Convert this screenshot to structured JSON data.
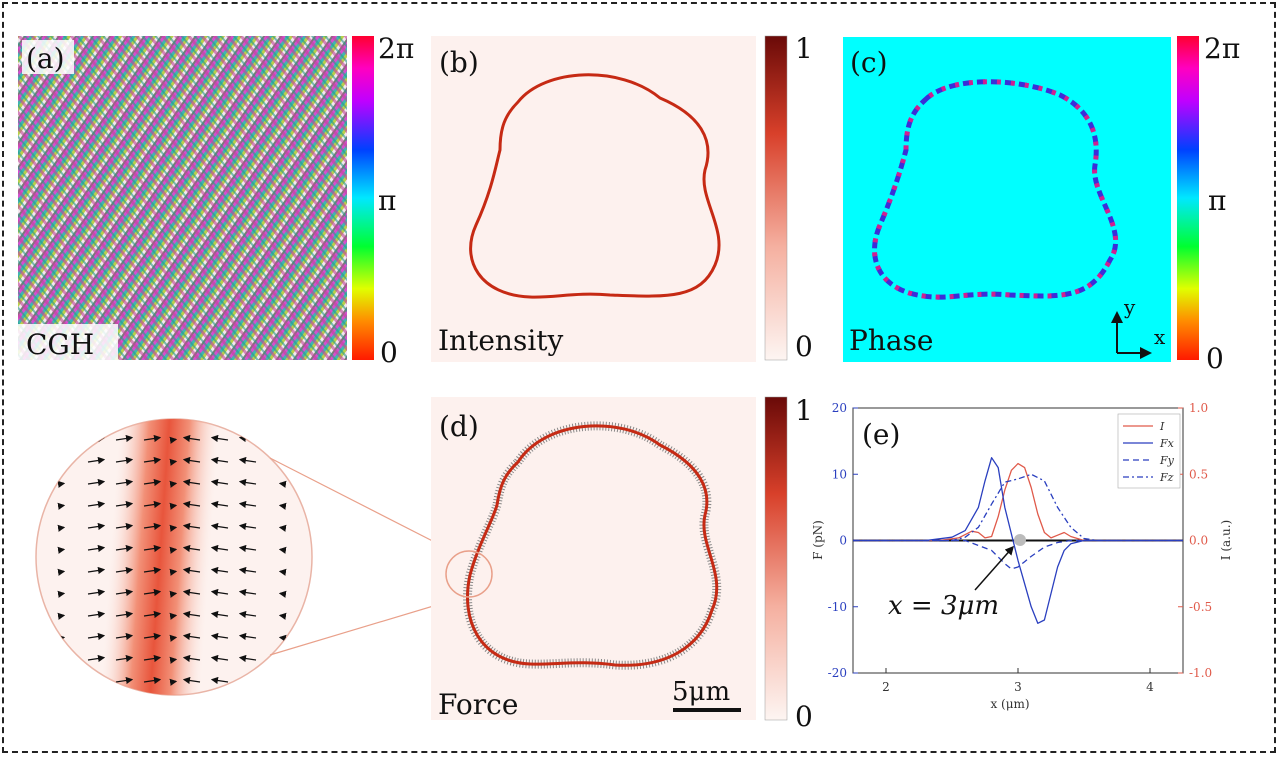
{
  "panels": {
    "a": {
      "label": "(a)",
      "caption": "CGH",
      "cbar": {
        "top": "2π",
        "mid": "π",
        "bottom": "0"
      }
    },
    "b": {
      "label": "(b)",
      "caption": "Intensity",
      "cbar": {
        "top": "1",
        "bottom": "0"
      }
    },
    "c": {
      "label": "(c)",
      "caption": "Phase",
      "cbar": {
        "top": "2π",
        "mid": "π",
        "bottom": "0"
      },
      "axes": {
        "y": "y",
        "x": "x"
      }
    },
    "d": {
      "label": "(d)",
      "caption": "Force",
      "scalebar": "5μm",
      "cbar": {
        "top": "1",
        "bottom": "0"
      }
    },
    "e": {
      "label": "(e)",
      "annotation": "x = 3μm"
    }
  },
  "colors": {
    "phase_bg": "#00ffff",
    "intensity_bg": "#fdf1ee",
    "ring": "#c62a14",
    "force_blue": "#2a3fbf",
    "intensity_red": "#e05a4a"
  },
  "chart_data": {
    "type": "line",
    "xlabel": "x (μm)",
    "ylabel_left": "F (pN)",
    "ylabel_right": "I (a.u.)",
    "xlim": [
      1.75,
      4.25
    ],
    "ylim_left": [
      -20,
      20
    ],
    "ylim_right": [
      -1.0,
      1.0
    ],
    "xticks": [
      "2",
      "3",
      "4"
    ],
    "yticks_left": [
      "20",
      "10",
      "0",
      "-10",
      "-20"
    ],
    "yticks_right": [
      "1.0",
      "0.5",
      "0.0",
      "-0.5",
      "-1.0"
    ],
    "legend": [
      "I",
      "Fx",
      "Fy",
      "Fz"
    ],
    "legend_position": "top-right",
    "series": [
      {
        "name": "I",
        "axis": "right",
        "x": [
          1.75,
          2.4,
          2.55,
          2.65,
          2.7,
          2.75,
          2.8,
          2.85,
          2.9,
          2.95,
          3.0,
          3.05,
          3.1,
          3.15,
          3.2,
          3.25,
          3.3,
          3.35,
          3.4,
          3.5,
          4.25
        ],
        "values": [
          0,
          0,
          0.02,
          0.07,
          0.06,
          0.02,
          0.03,
          0.18,
          0.38,
          0.53,
          0.58,
          0.55,
          0.4,
          0.2,
          0.06,
          0.02,
          0.04,
          0.06,
          0.03,
          0,
          0
        ]
      },
      {
        "name": "Fx",
        "axis": "left",
        "x": [
          1.75,
          2.3,
          2.5,
          2.6,
          2.7,
          2.75,
          2.8,
          2.85,
          2.9,
          3.0,
          3.1,
          3.15,
          3.2,
          3.25,
          3.3,
          3.35,
          3.4,
          3.5,
          4.25
        ],
        "values": [
          0,
          0,
          0.5,
          1.5,
          5,
          9,
          12.5,
          11,
          5,
          -3,
          -10,
          -12.5,
          -12,
          -8,
          -4,
          -1.5,
          -0.5,
          0,
          0
        ]
      },
      {
        "name": "Fy",
        "axis": "left",
        "x": [
          1.75,
          2.6,
          2.8,
          2.9,
          2.95,
          3.0,
          3.05,
          3.1,
          3.2,
          3.3,
          3.4,
          4.25
        ],
        "values": [
          0,
          0,
          -1.5,
          -3.5,
          -4.3,
          -4,
          -3.2,
          -2.4,
          -1,
          -0.3,
          0,
          0
        ]
      },
      {
        "name": "Fz",
        "axis": "left",
        "x": [
          1.75,
          2.5,
          2.6,
          2.7,
          2.8,
          2.9,
          3.0,
          3.1,
          3.2,
          3.3,
          3.4,
          3.5,
          3.6,
          4.25
        ],
        "values": [
          0,
          0,
          0.5,
          2,
          5.5,
          8.8,
          9.3,
          10,
          9,
          5,
          2,
          0.3,
          0,
          0
        ]
      }
    ]
  }
}
